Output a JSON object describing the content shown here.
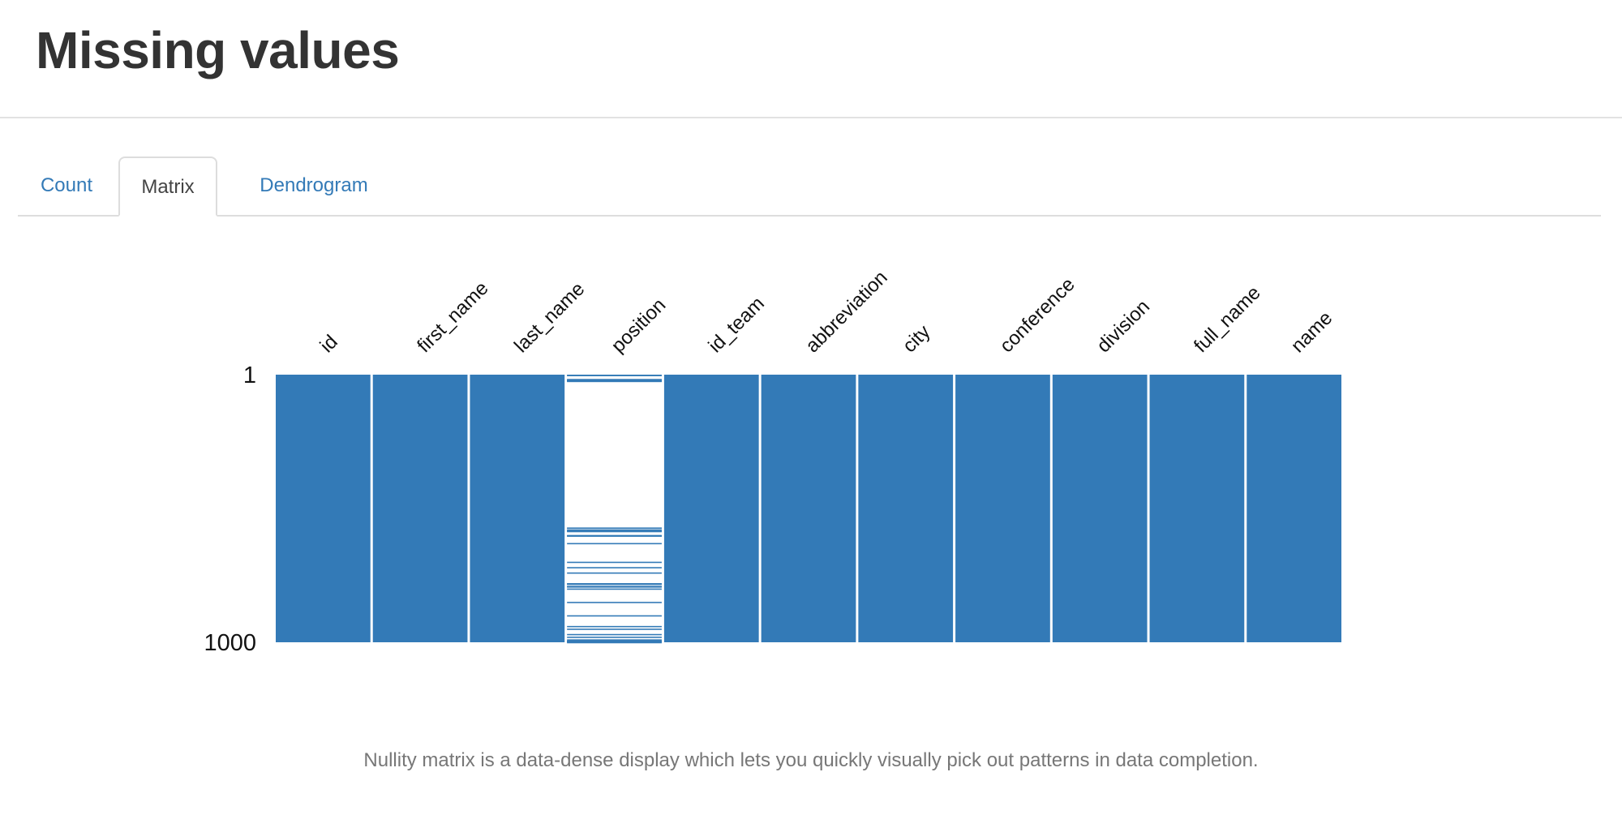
{
  "header": {
    "title": "Missing values"
  },
  "tabs": [
    {
      "label": "Count",
      "active": false
    },
    {
      "label": "Matrix",
      "active": true
    },
    {
      "label": "Dendrogram",
      "active": false
    }
  ],
  "chart_data": {
    "type": "heatmap",
    "title": "Nullity matrix",
    "columns": [
      "id",
      "first_name",
      "last_name",
      "position",
      "id_team",
      "abbreviation",
      "city",
      "conference",
      "division",
      "full_name",
      "name"
    ],
    "row_range": [
      1,
      1000
    ],
    "y_tick_labels": [
      "1",
      "1000"
    ],
    "fill_color": "#337ab7",
    "missing_color": "#ffffff",
    "complete_columns": [
      "id",
      "first_name",
      "last_name",
      "id_team",
      "abbreviation",
      "city",
      "conference",
      "division",
      "full_name",
      "name"
    ],
    "partial_columns": [
      {
        "name": "position",
        "present_rows": [
          1,
          2,
          17,
          18,
          19,
          20,
          21,
          22,
          23,
          24,
          572,
          573,
          580,
          581,
          584,
          585,
          600,
          601,
          602,
          630,
          700,
          720,
          740,
          780,
          781,
          782,
          790,
          791,
          792,
          800,
          850,
          900,
          940,
          950,
          970,
          980,
          990,
          994,
          995,
          996,
          997,
          998,
          1000
        ]
      }
    ]
  },
  "caption": "Nullity matrix is a data-dense display which lets you quickly visually pick out patterns in data completion."
}
